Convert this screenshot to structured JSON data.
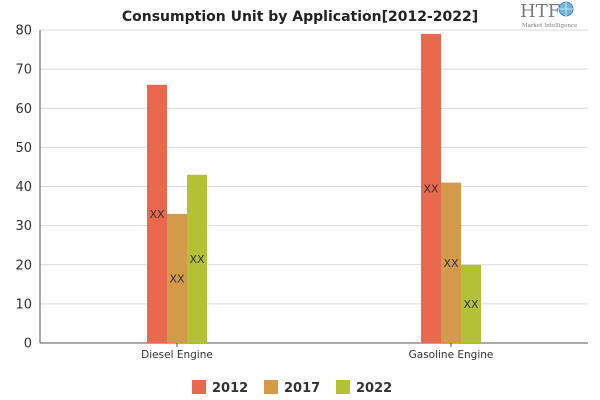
{
  "brand": {
    "logo_mark": "HTF",
    "logo_sub": "Market Intelligence",
    "icon": "globe-icon"
  },
  "chart_data": {
    "type": "bar",
    "title": "Consumption Unit by  Application[2012-2022]",
    "categories": [
      "Diesel Engine",
      "Gasoline Engine"
    ],
    "series": [
      {
        "name": "2012",
        "values": [
          66,
          79
        ],
        "color": "#e8694e",
        "labels": [
          "XX",
          "XX"
        ]
      },
      {
        "name": "2017",
        "values": [
          33,
          41
        ],
        "color": "#d39a4a",
        "labels": [
          "XX",
          "XX"
        ]
      },
      {
        "name": "2022",
        "values": [
          43,
          20
        ],
        "color": "#b3c135",
        "labels": [
          "XX",
          "XX"
        ]
      }
    ],
    "ylim": [
      0,
      80
    ],
    "yticks": [
      0,
      10,
      20,
      30,
      40,
      50,
      60,
      70,
      80
    ],
    "xlabel": "",
    "ylabel": "",
    "grid": true,
    "legend": "bottom-center"
  }
}
